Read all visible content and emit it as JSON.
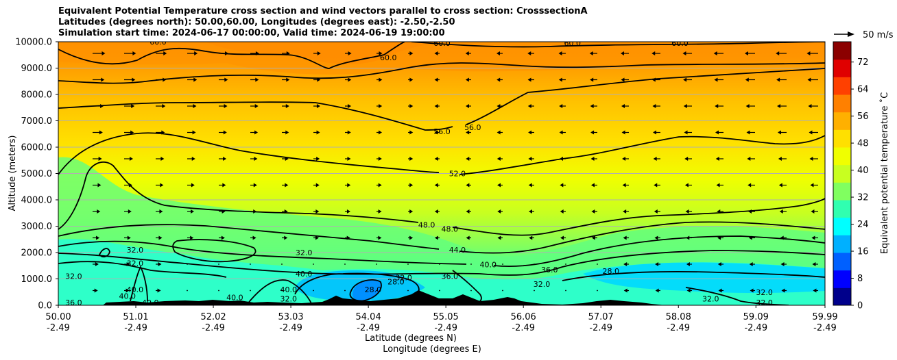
{
  "title_lines": [
    "Equivalent Potential Temperature cross section and wind vectors parallel to cross section: CrosssectionA",
    "Latitudes (degrees north): 50.00,60.00, Longitudes (degrees east): -2.50,-2.50",
    "Simulation start time: 2024-06-17 00:00:00, Valid time: 2024-06-19 19:00:00"
  ],
  "chart_data": {
    "type": "heatmap",
    "subtype": "cross-section contour plot with wind vectors",
    "xlabel_line1": "Latitude (degrees N)",
    "xlabel_line2": "Longitude (degrees E)",
    "ylabel": "Altitude (meters)",
    "ylim": [
      0,
      10000
    ],
    "y_ticks": [
      "0.0",
      "1000.0",
      "2000.0",
      "3000.0",
      "4000.0",
      "5000.0",
      "6000.0",
      "7000.0",
      "8000.0",
      "9000.0",
      "10000.0"
    ],
    "y_tick_values": [
      0,
      1000,
      2000,
      3000,
      4000,
      5000,
      6000,
      7000,
      8000,
      9000,
      10000
    ],
    "x_ticks_lat": [
      "50.00",
      "51.01",
      "52.02",
      "53.03",
      "54.04",
      "55.05",
      "56.06",
      "57.07",
      "58.08",
      "59.09",
      "59.99"
    ],
    "x_ticks_lon": [
      "-2.49",
      "-2.49",
      "-2.49",
      "-2.49",
      "-2.49",
      "-2.49",
      "-2.49",
      "-2.49",
      "-2.49",
      "-2.49",
      "-2.49"
    ],
    "x_tick_values": [
      50.0,
      51.01,
      52.02,
      53.03,
      54.04,
      55.05,
      56.06,
      57.07,
      58.08,
      59.09,
      59.99
    ],
    "xlim": [
      50.0,
      59.99
    ],
    "grid": "horizontal lines at y ticks",
    "colorbar": {
      "label": "Equivalent potential temperature ˚C",
      "ticks": [
        "0",
        "8",
        "16",
        "24",
        "32",
        "40",
        "48",
        "56",
        "64",
        "72"
      ],
      "tick_values": [
        0,
        8,
        16,
        24,
        32,
        40,
        48,
        56,
        64,
        72
      ],
      "range": [
        0,
        78
      ],
      "colors": [
        "#00008b",
        "#0000ff",
        "#0060ff",
        "#00b0ff",
        "#00ffff",
        "#30ffb0",
        "#80ff60",
        "#c8ff20",
        "#f0ff00",
        "#ffe000",
        "#ffb000",
        "#ff8000",
        "#ff4000",
        "#e00000",
        "#8b0000"
      ]
    },
    "contour_labels": [
      {
        "text": "60.0",
        "lat": 51.3,
        "alt": 10000
      },
      {
        "text": "60.0",
        "lat": 54.3,
        "alt": 9400
      },
      {
        "text": "60.0",
        "lat": 55.0,
        "alt": 9950
      },
      {
        "text": "60.0",
        "lat": 56.7,
        "alt": 9950
      },
      {
        "text": "60.0",
        "lat": 58.1,
        "alt": 9950
      },
      {
        "text": "56.0",
        "lat": 55.0,
        "alt": 6600
      },
      {
        "text": "56.0",
        "lat": 55.4,
        "alt": 6750
      },
      {
        "text": "52.0",
        "lat": 55.2,
        "alt": 5000
      },
      {
        "text": "48.0",
        "lat": 54.8,
        "alt": 3050
      },
      {
        "text": "48.0",
        "lat": 55.1,
        "alt": 2900
      },
      {
        "text": "44.0",
        "lat": 55.2,
        "alt": 2100
      },
      {
        "text": "40.0",
        "lat": 55.6,
        "alt": 1550
      },
      {
        "text": "36.0",
        "lat": 56.4,
        "alt": 1350
      },
      {
        "text": "32.0",
        "lat": 51.0,
        "alt": 2100
      },
      {
        "text": "32.0",
        "lat": 51.0,
        "alt": 1600
      },
      {
        "text": "32.0",
        "lat": 53.2,
        "alt": 2000
      },
      {
        "text": "32.0",
        "lat": 50.2,
        "alt": 1100
      },
      {
        "text": "32.0",
        "lat": 54.5,
        "alt": 1050
      },
      {
        "text": "32.0",
        "lat": 53.0,
        "alt": 250
      },
      {
        "text": "32.0",
        "lat": 56.3,
        "alt": 800
      },
      {
        "text": "32.0",
        "lat": 58.5,
        "alt": 250
      },
      {
        "text": "32.0",
        "lat": 59.2,
        "alt": 500
      },
      {
        "text": "32.0",
        "lat": 59.2,
        "alt": 100
      },
      {
        "text": "36.0",
        "lat": 50.2,
        "alt": 100
      },
      {
        "text": "28.0",
        "lat": 54.4,
        "alt": 900
      },
      {
        "text": "28.0",
        "lat": 54.1,
        "alt": 600
      },
      {
        "text": "28.0",
        "lat": 57.2,
        "alt": 1300
      },
      {
        "text": "36.0",
        "lat": 55.1,
        "alt": 1100
      },
      {
        "text": "40.0",
        "lat": 51.0,
        "alt": 600
      },
      {
        "text": "40.0",
        "lat": 51.2,
        "alt": 100
      },
      {
        "text": "40.0",
        "lat": 51.6,
        "alt": 50
      },
      {
        "text": "40.0",
        "lat": 53.0,
        "alt": 600
      },
      {
        "text": "40.0",
        "lat": 50.9,
        "alt": 350
      },
      {
        "text": "40.0",
        "lat": 52.3,
        "alt": 300
      },
      {
        "text": "40.0",
        "lat": 53.2,
        "alt": 1200
      }
    ],
    "wind_reference": "50 m/s"
  },
  "colors": {
    "contour_line": "#000000",
    "terrain": "#000000",
    "grid": "#b0b0b0"
  }
}
